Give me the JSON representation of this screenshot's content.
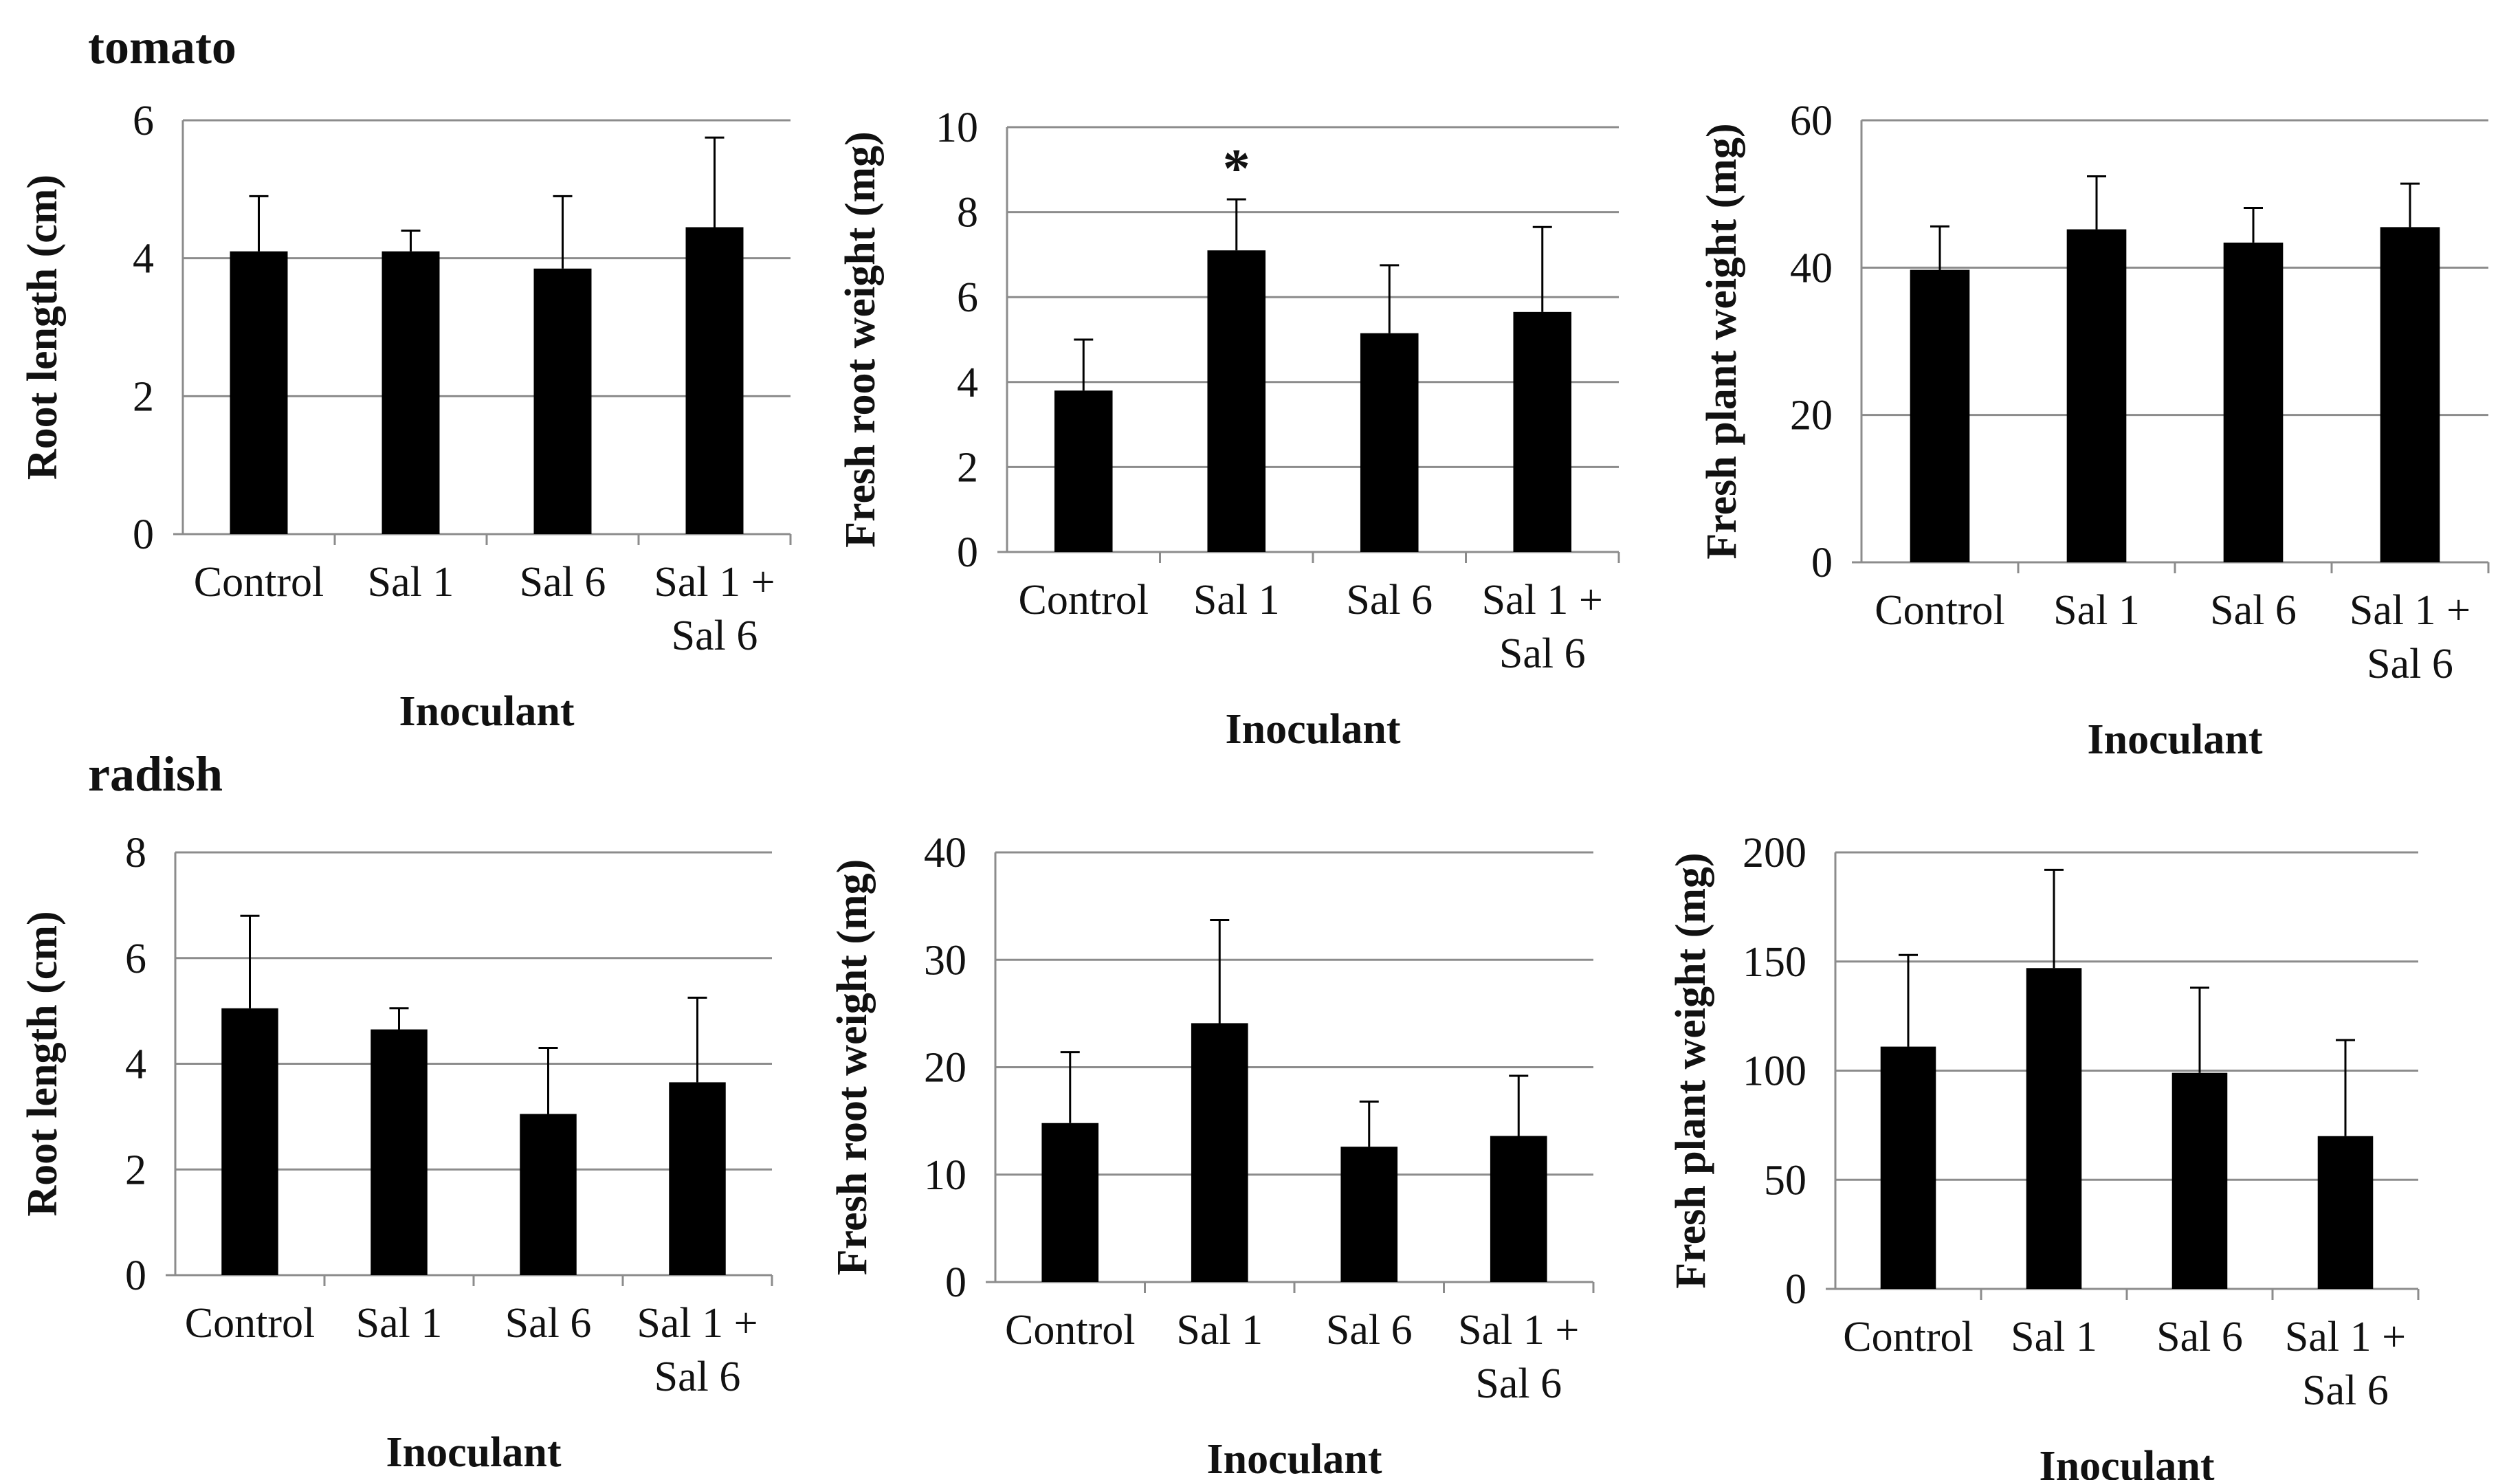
{
  "row_titles": [
    "tomato",
    "radish"
  ],
  "chart_data": [
    {
      "id": "tomato-root-length",
      "type": "bar",
      "categories": [
        [
          "Control"
        ],
        [
          "Sal 1"
        ],
        [
          "Sal 6"
        ],
        [
          "Sal 1 +",
          "Sal 6"
        ]
      ],
      "values": [
        4.1,
        4.1,
        3.85,
        4.45
      ],
      "errors": [
        0.8,
        0.3,
        1.05,
        1.3
      ],
      "ylabel": "Root length (cm)",
      "xlabel": "Inoculant",
      "ylim": [
        0,
        6
      ],
      "yticks": [
        0,
        2,
        4,
        6
      ],
      "annotations": []
    },
    {
      "id": "tomato-fresh-root-weight",
      "type": "bar",
      "categories": [
        [
          "Control"
        ],
        [
          "Sal 1"
        ],
        [
          "Sal 6"
        ],
        [
          "Sal 1 +",
          "Sal 6"
        ]
      ],
      "values": [
        3.8,
        7.1,
        5.15,
        5.65
      ],
      "errors": [
        1.2,
        1.2,
        1.6,
        2.0
      ],
      "ylabel": "Fresh root weight (mg)",
      "xlabel": "Inoculant",
      "ylim": [
        0,
        10
      ],
      "yticks": [
        0,
        2,
        4,
        6,
        8,
        10
      ],
      "annotations": [
        {
          "category_index": 1,
          "text": "*"
        }
      ]
    },
    {
      "id": "tomato-fresh-plant-weight",
      "type": "bar",
      "categories": [
        [
          "Control"
        ],
        [
          "Sal 1"
        ],
        [
          "Sal 6"
        ],
        [
          "Sal 1 +",
          "Sal 6"
        ]
      ],
      "values": [
        39.7,
        45.2,
        43.4,
        45.5
      ],
      "errors": [
        5.9,
        7.2,
        4.7,
        5.9
      ],
      "ylabel": "Fresh plant weight (mg)",
      "xlabel": "Inoculant",
      "ylim": [
        0,
        60
      ],
      "yticks": [
        0,
        20,
        40,
        60
      ],
      "annotations": []
    },
    {
      "id": "radish-root-length",
      "type": "bar",
      "categories": [
        [
          "Control"
        ],
        [
          "Sal 1"
        ],
        [
          "Sal 6"
        ],
        [
          "Sal 1 +",
          "Sal 6"
        ]
      ],
      "values": [
        5.05,
        4.65,
        3.05,
        3.65
      ],
      "errors": [
        1.75,
        0.4,
        1.25,
        1.6
      ],
      "ylabel": "Root length (cm)",
      "xlabel": "Inoculant",
      "ylim": [
        0,
        8
      ],
      "yticks": [
        0,
        2,
        4,
        6,
        8
      ],
      "annotations": []
    },
    {
      "id": "radish-fresh-root-weight",
      "type": "bar",
      "categories": [
        [
          "Control"
        ],
        [
          "Sal 1"
        ],
        [
          "Sal 6"
        ],
        [
          "Sal 1 +",
          "Sal 6"
        ]
      ],
      "values": [
        14.8,
        24.1,
        12.6,
        13.6
      ],
      "errors": [
        6.6,
        9.6,
        4.2,
        5.6
      ],
      "ylabel": "Fresh root weight (mg)",
      "xlabel": "Inoculant",
      "ylim": [
        0,
        40
      ],
      "yticks": [
        0,
        10,
        20,
        30,
        40
      ],
      "annotations": []
    },
    {
      "id": "radish-fresh-plant-weight",
      "type": "bar",
      "categories": [
        [
          "Control"
        ],
        [
          "Sal 1"
        ],
        [
          "Sal 6"
        ],
        [
          "Sal 1 +",
          "Sal 6"
        ]
      ],
      "values": [
        111,
        147,
        99,
        70
      ],
      "errors": [
        42,
        45,
        39,
        44
      ],
      "ylabel": "Fresh plant weight (mg)",
      "xlabel": "Inoculant",
      "ylim": [
        0,
        200
      ],
      "yticks": [
        0,
        50,
        100,
        150,
        200
      ],
      "annotations": []
    }
  ]
}
